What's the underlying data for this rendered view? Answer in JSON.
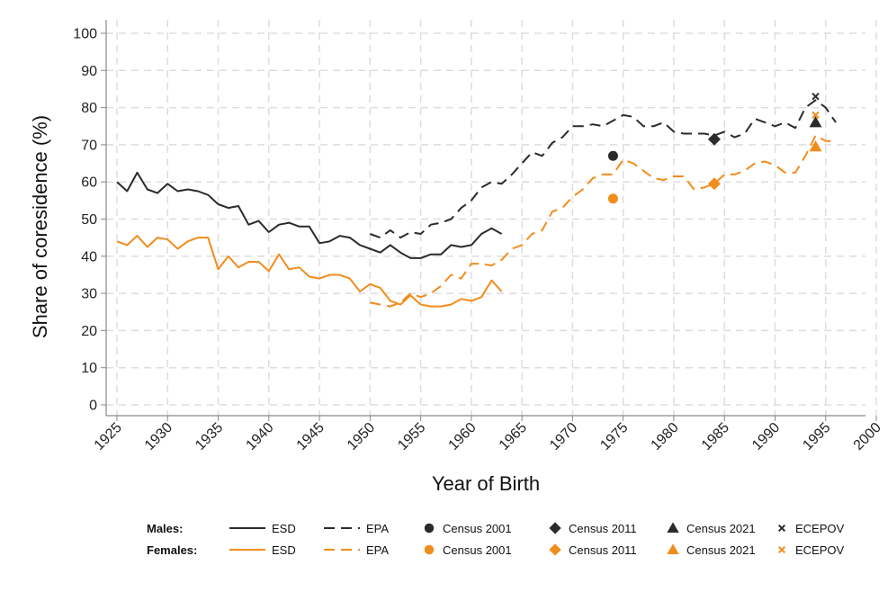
{
  "chart_data": {
    "type": "line",
    "title": "",
    "xlabel": "Year of Birth",
    "ylabel": "Share of coresidence (%)",
    "xlim": [
      1925,
      2000
    ],
    "ylim": [
      0,
      100
    ],
    "x_ticks": [
      "1925",
      "1930",
      "1935",
      "1940",
      "1945",
      "1950",
      "1955",
      "1960",
      "1965",
      "1970",
      "1975",
      "1980",
      "1985",
      "1990",
      "1995",
      "2000"
    ],
    "y_ticks": [
      "0",
      "10",
      "20",
      "30",
      "40",
      "50",
      "60",
      "70",
      "80",
      "90",
      "100"
    ],
    "grid": true,
    "colors": {
      "males": "#2b2b2b",
      "females": "#f28c1c",
      "grid": "#dddddd",
      "axis": "#888888"
    },
    "series": [
      {
        "name": "Males ESD",
        "group": "males",
        "style": "solid",
        "x": [
          1925,
          1926,
          1927,
          1928,
          1929,
          1930,
          1931,
          1932,
          1933,
          1934,
          1935,
          1936,
          1937,
          1938,
          1939,
          1940,
          1941,
          1942,
          1943,
          1944,
          1945,
          1946,
          1947,
          1948,
          1949,
          1950,
          1951,
          1952,
          1953,
          1954,
          1955,
          1956,
          1957,
          1958,
          1959,
          1960,
          1961,
          1962,
          1963
        ],
        "y": [
          60,
          57.5,
          62.5,
          58,
          57,
          59.5,
          57.5,
          58,
          57.5,
          56.5,
          54,
          53,
          53.5,
          48.5,
          49.5,
          46.5,
          48.5,
          49,
          48,
          48,
          43.5,
          44,
          45.5,
          45,
          43,
          42,
          41,
          43,
          41,
          39.5,
          39.5,
          40.5,
          40.5,
          43,
          42.5,
          43,
          46,
          47.5,
          46
        ]
      },
      {
        "name": "Males EPA",
        "group": "males",
        "style": "dashed",
        "x": [
          1950,
          1951,
          1952,
          1953,
          1954,
          1955,
          1956,
          1957,
          1958,
          1959,
          1960,
          1961,
          1962,
          1963,
          1964,
          1965,
          1966,
          1967,
          1968,
          1969,
          1970,
          1971,
          1972,
          1973,
          1974,
          1975,
          1976,
          1977,
          1978,
          1979,
          1980,
          1981,
          1982,
          1983,
          1984,
          1985,
          1986,
          1987,
          1988,
          1989,
          1990,
          1991,
          1992,
          1993,
          1994,
          1995,
          1996
        ],
        "y": [
          46,
          45,
          47,
          45,
          46.5,
          46,
          48.5,
          49,
          50,
          53,
          55,
          58.5,
          60,
          59.5,
          62,
          65,
          68,
          67,
          70.5,
          72,
          75,
          75,
          75.5,
          75,
          76.5,
          78,
          77.5,
          75,
          75,
          76,
          73.5,
          73,
          73,
          73,
          72.5,
          73.5,
          72,
          73,
          77,
          76,
          75,
          76,
          74.5,
          80,
          82,
          80,
          76
        ]
      },
      {
        "name": "Females ESD",
        "group": "females",
        "style": "solid",
        "x": [
          1925,
          1926,
          1927,
          1928,
          1929,
          1930,
          1931,
          1932,
          1933,
          1934,
          1935,
          1936,
          1937,
          1938,
          1939,
          1940,
          1941,
          1942,
          1943,
          1944,
          1945,
          1946,
          1947,
          1948,
          1949,
          1950,
          1951,
          1952,
          1953,
          1954,
          1955,
          1956,
          1957,
          1958,
          1959,
          1960,
          1961,
          1962,
          1963
        ],
        "y": [
          44,
          43,
          45.5,
          42.5,
          45,
          44.5,
          42,
          44,
          45,
          45,
          36.5,
          40,
          37,
          38.5,
          38.5,
          36,
          40.5,
          36.5,
          37,
          34.5,
          34,
          35,
          35,
          34,
          30.5,
          32.5,
          31.5,
          28,
          27,
          29.5,
          27,
          26.5,
          26.5,
          27,
          28.5,
          28,
          29,
          33.5,
          30.5
        ]
      },
      {
        "name": "Females EPA",
        "group": "females",
        "style": "dashed",
        "x": [
          1950,
          1951,
          1952,
          1953,
          1954,
          1955,
          1956,
          1957,
          1958,
          1959,
          1960,
          1961,
          1962,
          1963,
          1964,
          1965,
          1966,
          1967,
          1968,
          1969,
          1970,
          1971,
          1972,
          1973,
          1974,
          1975,
          1976,
          1977,
          1978,
          1979,
          1980,
          1981,
          1982,
          1983,
          1984,
          1985,
          1986,
          1987,
          1988,
          1989,
          1990,
          1991,
          1992,
          1993,
          1994,
          1995,
          1996
        ],
        "y": [
          27.5,
          27,
          26.5,
          27.5,
          30,
          29,
          30,
          32,
          35,
          34,
          38,
          38,
          37.5,
          39,
          42,
          43,
          46,
          47,
          52,
          53,
          56,
          58,
          61,
          62,
          62,
          66,
          65,
          63,
          61,
          60.5,
          61.5,
          61.5,
          58,
          58.5,
          59.5,
          62,
          62,
          63,
          65,
          65.5,
          64.5,
          62.5,
          62.5,
          67,
          72.5,
          71,
          71
        ]
      }
    ],
    "points": [
      {
        "name": "Males Census 2001",
        "group": "males",
        "marker": "circle",
        "x": 1974,
        "y": 67
      },
      {
        "name": "Males Census 2011",
        "group": "males",
        "marker": "diamond",
        "x": 1984,
        "y": 71.5
      },
      {
        "name": "Males Census 2021",
        "group": "males",
        "marker": "triangle",
        "x": 1994,
        "y": 76
      },
      {
        "name": "Males ECEPOV",
        "group": "males",
        "marker": "x",
        "x": 1994,
        "y": 83
      },
      {
        "name": "Females Census 2001",
        "group": "females",
        "marker": "circle",
        "x": 1974,
        "y": 55.5
      },
      {
        "name": "Females Census 2011",
        "group": "females",
        "marker": "diamond",
        "x": 1984,
        "y": 59.5
      },
      {
        "name": "Females Census 2021",
        "group": "females",
        "marker": "triangle",
        "x": 1994,
        "y": 69.5
      },
      {
        "name": "Females ECEPOV",
        "group": "females",
        "marker": "x",
        "x": 1994,
        "y": 78
      }
    ],
    "legend": {
      "position": "bottom",
      "rows": [
        {
          "group": "males",
          "label": "Males:",
          "entries": [
            {
              "kind": "line-solid",
              "label": "ESD"
            },
            {
              "kind": "line-dashed",
              "label": "EPA"
            },
            {
              "kind": "circle",
              "label": "Census 2001"
            },
            {
              "kind": "diamond",
              "label": "Census 2011"
            },
            {
              "kind": "triangle",
              "label": "Census 2021"
            },
            {
              "kind": "x",
              "label": "ECEPOV"
            }
          ]
        },
        {
          "group": "females",
          "label": "Females:",
          "entries": [
            {
              "kind": "line-solid",
              "label": "ESD"
            },
            {
              "kind": "line-dashed",
              "label": "EPA"
            },
            {
              "kind": "circle",
              "label": "Census 2001"
            },
            {
              "kind": "diamond",
              "label": "Census 2011"
            },
            {
              "kind": "triangle",
              "label": "Census 2021"
            },
            {
              "kind": "x",
              "label": "ECEPOV"
            }
          ]
        }
      ]
    }
  }
}
